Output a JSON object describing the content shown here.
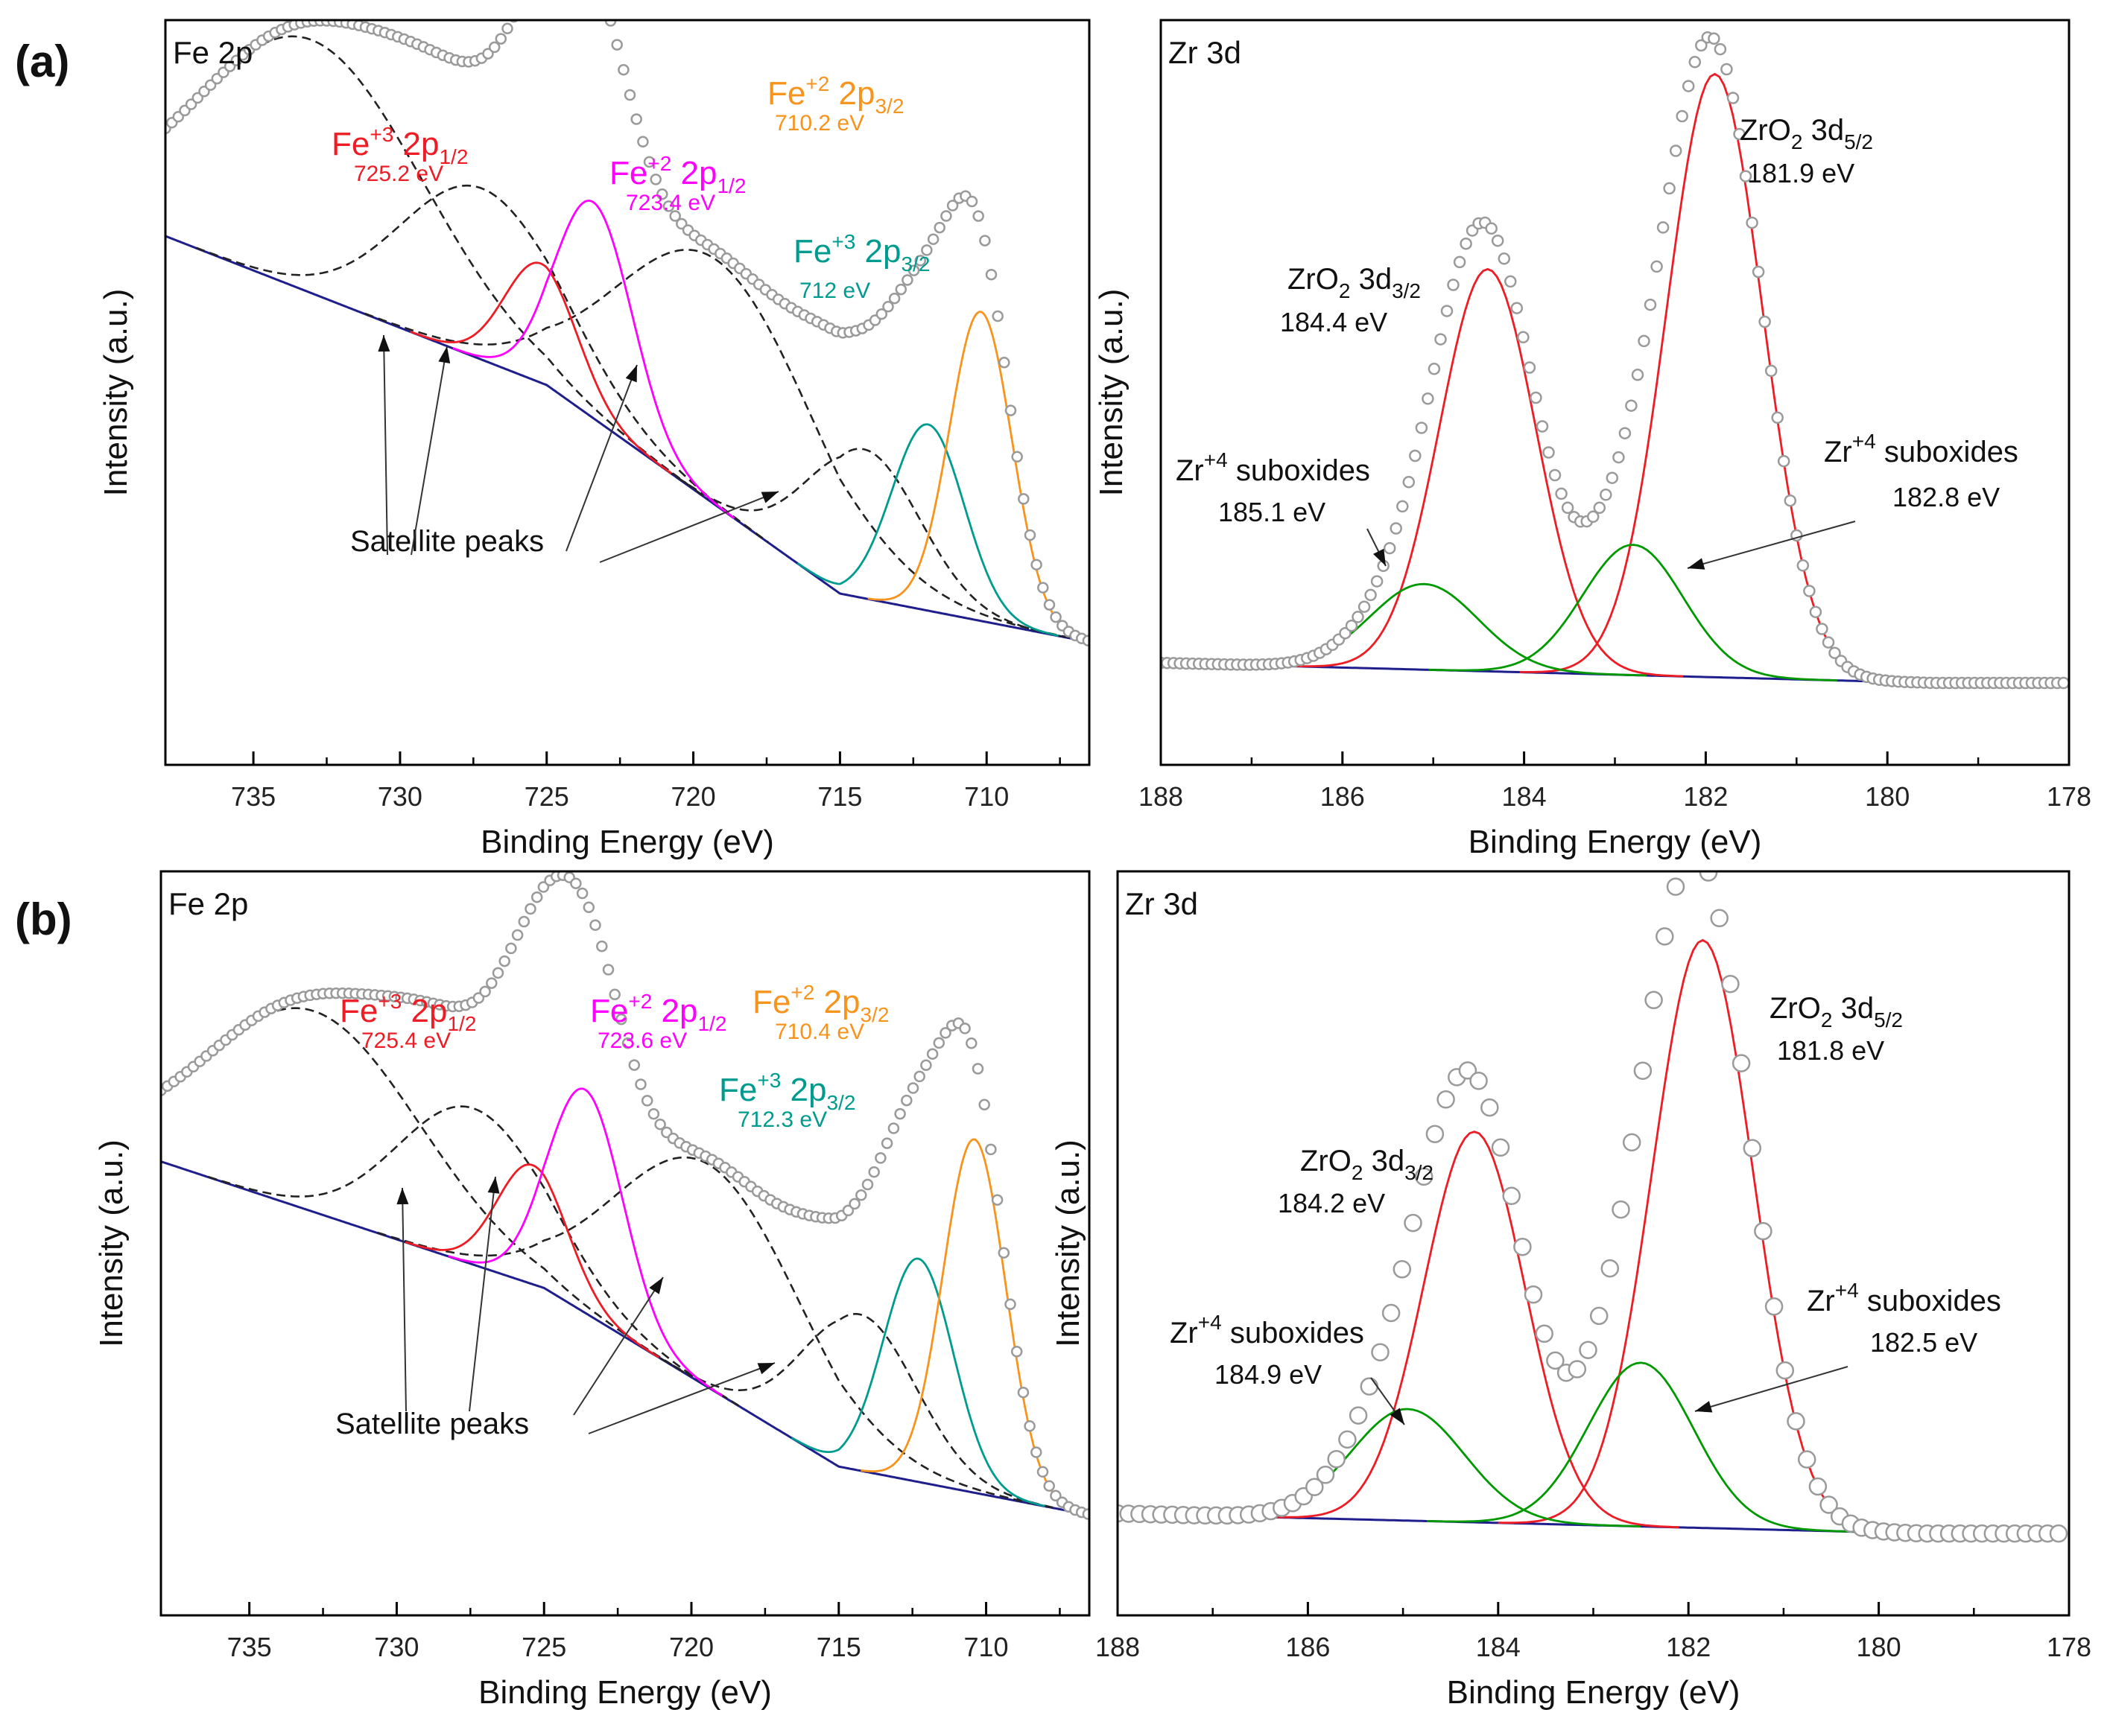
{
  "figure": {
    "panel_labels": [
      "(a)",
      "(b)"
    ]
  },
  "colors": {
    "fe3": "#ee1c24",
    "fe2": "#ff00ff",
    "fe3b": "#009b8f",
    "fe2b": "#f7941d",
    "zr": "#ee1c24",
    "sub": "#009900",
    "sat": "#222222",
    "bg": "#1e1e8c",
    "data": "#9a9a9a"
  },
  "chart_data": [
    {
      "id": "a-fe",
      "type": "line",
      "title": "Fe 2p",
      "xlabel": "Binding Energy (eV)",
      "ylabel": "Intensity (a.u.)",
      "xlim": [
        738,
        706.5
      ],
      "ylim": [
        0,
        1
      ],
      "xticks": [
        735,
        730,
        725,
        720,
        715,
        710
      ],
      "background": {
        "x": [
          738,
          725,
          715,
          706.5
        ],
        "y": [
          0.71,
          0.51,
          0.23,
          0.165
        ]
      },
      "series": [
        {
          "name": "Fe+3 2p1/2",
          "label": "Fe",
          "sup": "+3",
          "orb": "2p",
          "sub": "1/2",
          "energy": "725.2 eV",
          "center": 725.2,
          "height": 0.16,
          "fwhm": 2.9,
          "color": "fe3"
        },
        {
          "name": "Fe+2 2p1/2",
          "label": "Fe",
          "sup": "+2",
          "orb": "2p",
          "sub": "1/2",
          "energy": "723.4 eV",
          "center": 723.4,
          "height": 0.29,
          "fwhm": 3.1,
          "color": "fe2"
        },
        {
          "name": "Fe+3 2p3/2",
          "label": "Fe",
          "sup": "+3",
          "orb": "2p",
          "sub": "3/2",
          "energy": "712 eV",
          "center": 712.0,
          "height": 0.25,
          "fwhm": 2.9,
          "color": "fe3b"
        },
        {
          "name": "Fe+2 2p3/2",
          "label": "Fe",
          "sup": "+2",
          "orb": "2p",
          "sub": "3/2",
          "energy": "710.2 eV",
          "center": 710.2,
          "height": 0.415,
          "fwhm": 2.5,
          "color": "fe2b"
        }
      ],
      "satellites": [
        {
          "center": 733.0,
          "height": 0.34,
          "fwhm": 9
        },
        {
          "center": 727.2,
          "height": 0.23,
          "fwhm": 6.5
        },
        {
          "center": 719.2,
          "height": 0.33,
          "fwhm": 8
        },
        {
          "center": 714.2,
          "height": 0.2,
          "fwhm": 4.5
        }
      ],
      "data_top": [
        730,
        725,
        724,
        723.2,
        720.2,
        716,
        712.4,
        710.6,
        709
      ],
      "annotation": {
        "text": "Satellite peaks"
      }
    },
    {
      "id": "a-zr",
      "type": "line",
      "title": "Zr 3d",
      "xlabel": "Binding Energy (eV)",
      "ylabel": "Intensity (a.u.)",
      "xlim": [
        188,
        178
      ],
      "ylim": [
        0,
        1
      ],
      "xticks": [
        188,
        186,
        184,
        182,
        180,
        178
      ],
      "background": {
        "x": [
          188,
          179.5
        ],
        "y": [
          0.137,
          0.11
        ]
      },
      "series": [
        {
          "name": "ZrO2 3d3/2",
          "label": "ZrO",
          "sub1": "2",
          "orb": "3d",
          "sub": "3/2",
          "energy": "184.4 eV",
          "center": 184.4,
          "height": 0.54,
          "fwhm": 1.25,
          "color": "zr"
        },
        {
          "name": "ZrO2 3d5/2",
          "label": "ZrO",
          "sub1": "2",
          "orb": "3d",
          "sub": "5/2",
          "energy": "181.9 eV",
          "center": 181.9,
          "height": 0.81,
          "fwhm": 1.25,
          "color": "zr"
        },
        {
          "name": "Zr+4 suboxides",
          "label": "Zr",
          "sup": "+4",
          "text": "suboxides",
          "energy": "185.1 eV",
          "center": 185.1,
          "height": 0.115,
          "fwhm": 1.4,
          "color": "sub"
        },
        {
          "name": "Zr+4 suboxides",
          "label": "Zr",
          "sup": "+4",
          "text": "suboxides",
          "energy": "182.8 eV",
          "center": 182.8,
          "height": 0.175,
          "fwhm": 1.3,
          "color": "sub"
        }
      ],
      "data_top": [
        184.4,
        183.3,
        182.0
      ]
    },
    {
      "id": "b-fe",
      "type": "line",
      "title": "Fe 2p",
      "xlabel": "Binding Energy (eV)",
      "ylabel": "Intensity (a.u.)",
      "xlim": [
        738,
        706.5
      ],
      "ylim": [
        0,
        1
      ],
      "xticks": [
        735,
        730,
        725,
        720,
        715,
        710
      ],
      "background": {
        "x": [
          738,
          725,
          715,
          706.5
        ],
        "y": [
          0.61,
          0.44,
          0.2,
          0.135
        ]
      },
      "series": [
        {
          "name": "Fe+3 2p1/2",
          "label": "Fe",
          "sup": "+3",
          "orb": "2p",
          "sub": "1/2",
          "energy": "725.4 eV",
          "center": 725.4,
          "height": 0.16,
          "fwhm": 2.8,
          "color": "fe3"
        },
        {
          "name": "Fe+2 2p1/2",
          "label": "Fe",
          "sup": "+2",
          "orb": "2p",
          "sub": "1/2",
          "energy": "723.6 eV",
          "center": 723.6,
          "height": 0.3,
          "fwhm": 3.0,
          "color": "fe2"
        },
        {
          "name": "Fe+3 2p3/2",
          "label": "Fe",
          "sup": "+3",
          "orb": "2p",
          "sub": "3/2",
          "energy": "712.3 eV",
          "center": 712.3,
          "height": 0.3,
          "fwhm": 2.8,
          "color": "fe3b"
        },
        {
          "name": "Fe+2 2p3/2",
          "label": "Fe",
          "sup": "+2",
          "orb": "2p",
          "sub": "3/2",
          "energy": "710.4 eV",
          "center": 710.4,
          "height": 0.475,
          "fwhm": 2.5,
          "color": "fe2b"
        }
      ],
      "satellites": [
        {
          "center": 732.8,
          "height": 0.27,
          "fwhm": 8.5
        },
        {
          "center": 727.4,
          "height": 0.21,
          "fwhm": 6.0
        },
        {
          "center": 719.4,
          "height": 0.3,
          "fwhm": 7.5
        },
        {
          "center": 714.3,
          "height": 0.21,
          "fwhm": 4.5
        }
      ],
      "data_top": [
        730,
        725,
        724,
        723.2,
        720.2,
        716,
        712.4,
        710.6,
        709
      ],
      "annotation": {
        "text": "Satellite peaks"
      }
    },
    {
      "id": "b-zr",
      "type": "line",
      "title": "Zr 3d",
      "xlabel": "Binding Energy (eV)",
      "ylabel": "Intensity (a.u.)",
      "xlim": [
        188,
        178
      ],
      "ylim": [
        0,
        1
      ],
      "xticks": [
        188,
        186,
        184,
        182,
        180,
        178
      ],
      "background": {
        "x": [
          188,
          179.5
        ],
        "y": [
          0.137,
          0.11
        ]
      },
      "series": [
        {
          "name": "ZrO2 3d3/2",
          "label": "ZrO",
          "sub1": "2",
          "orb": "3d",
          "sub": "3/2",
          "energy": "184.2 eV",
          "center": 184.25,
          "height": 0.525,
          "fwhm": 1.25,
          "color": "zr"
        },
        {
          "name": "ZrO2 3d5/2",
          "label": "ZrO",
          "sub1": "2",
          "orb": "3d",
          "sub": "5/2",
          "energy": "181.8 eV",
          "center": 181.85,
          "height": 0.79,
          "fwhm": 1.25,
          "color": "zr"
        },
        {
          "name": "Zr+4 suboxides",
          "label": "Zr",
          "sup": "+4",
          "text": "suboxides",
          "energy": "184.9 eV",
          "center": 184.95,
          "height": 0.15,
          "fwhm": 1.4,
          "color": "sub"
        },
        {
          "name": "Zr+4 suboxides",
          "label": "Zr",
          "sup": "+4",
          "text": "suboxides",
          "energy": "182.5 eV",
          "center": 182.5,
          "height": 0.22,
          "fwhm": 1.3,
          "color": "sub"
        }
      ],
      "data_top": [
        184.3,
        183.2,
        181.95
      ]
    }
  ]
}
